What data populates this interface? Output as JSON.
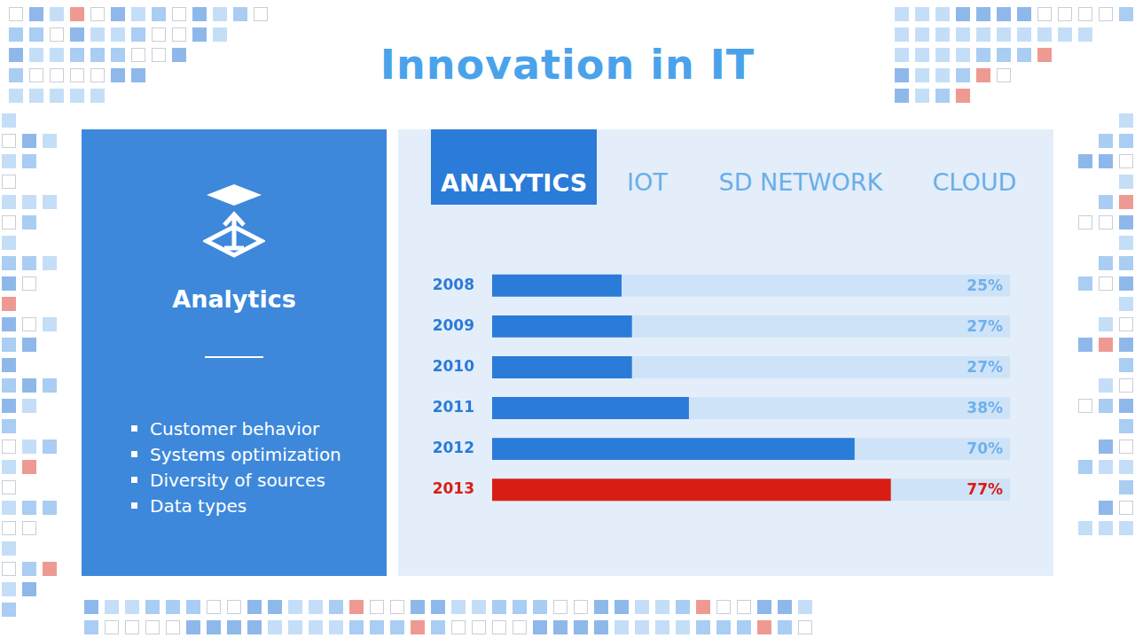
{
  "title": "Innovation in IT",
  "tabs": [
    "ANALYTICS",
    "IOT",
    "SD NETWORK",
    "CLOUD"
  ],
  "panel": {
    "heading": "Analytics",
    "bullets": [
      "Customer behavior",
      "Systems optimization",
      "Diversity of sources",
      "Data types"
    ]
  },
  "chart_data": {
    "type": "bar",
    "orientation": "horizontal",
    "categories": [
      "2008",
      "2009",
      "2010",
      "2011",
      "2012",
      "2013"
    ],
    "values": [
      25,
      27,
      27,
      38,
      70,
      77
    ],
    "value_labels": [
      "25%",
      "27%",
      "27%",
      "38%",
      "70%",
      "77%"
    ],
    "colors": [
      "#2b7bd8",
      "#2b7bd8",
      "#2b7bd8",
      "#2b7bd8",
      "#2b7bd8",
      "#d81e14"
    ],
    "xlim": [
      0,
      100
    ],
    "grid": false,
    "data_labels": true,
    "tick_labels": "y"
  }
}
